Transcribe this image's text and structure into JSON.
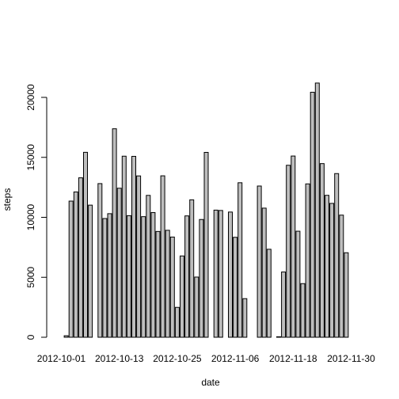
{
  "chart_data": {
    "type": "bar",
    "xlabel": "date",
    "ylabel": "steps",
    "ylim": [
      0,
      24500
    ],
    "y_ticks": [
      0,
      5000,
      10000,
      15000,
      20000
    ],
    "x_tick_labels": [
      "2012-10-01",
      "2012-10-13",
      "2012-10-25",
      "2012-11-06",
      "2012-11-18",
      "2012-11-30"
    ],
    "x_tick_indices": [
      0,
      12,
      24,
      36,
      48,
      60
    ],
    "bar_color": "#bebebe",
    "categories": [
      "2012-10-01",
      "2012-10-02",
      "2012-10-03",
      "2012-10-04",
      "2012-10-05",
      "2012-10-06",
      "2012-10-07",
      "2012-10-08",
      "2012-10-09",
      "2012-10-10",
      "2012-10-11",
      "2012-10-12",
      "2012-10-13",
      "2012-10-14",
      "2012-10-15",
      "2012-10-16",
      "2012-10-17",
      "2012-10-18",
      "2012-10-19",
      "2012-10-20",
      "2012-10-21",
      "2012-10-22",
      "2012-10-23",
      "2012-10-24",
      "2012-10-25",
      "2012-10-26",
      "2012-10-27",
      "2012-10-28",
      "2012-10-29",
      "2012-10-30",
      "2012-10-31",
      "2012-11-01",
      "2012-11-02",
      "2012-11-03",
      "2012-11-04",
      "2012-11-05",
      "2012-11-06",
      "2012-11-07",
      "2012-11-08",
      "2012-11-09",
      "2012-11-10",
      "2012-11-11",
      "2012-11-12",
      "2012-11-13",
      "2012-11-14",
      "2012-11-15",
      "2012-11-16",
      "2012-11-17",
      "2012-11-18",
      "2012-11-19",
      "2012-11-20",
      "2012-11-21",
      "2012-11-22",
      "2012-11-23",
      "2012-11-24",
      "2012-11-25",
      "2012-11-26",
      "2012-11-27",
      "2012-11-28",
      "2012-11-29",
      "2012-11-30"
    ],
    "values": [
      0,
      126,
      11352,
      12116,
      13294,
      15420,
      11015,
      0,
      12811,
      9900,
      10304,
      17382,
      12426,
      15098,
      10139,
      15084,
      13452,
      10056,
      11829,
      10395,
      8821,
      13460,
      8918,
      8355,
      2492,
      6778,
      10119,
      11458,
      5018,
      9819,
      15414,
      0,
      10600,
      10571,
      0,
      10439,
      8334,
      12883,
      3219,
      0,
      0,
      12608,
      10765,
      7336,
      0,
      41,
      5441,
      14339,
      15110,
      8841,
      4472,
      12787,
      20427,
      21194,
      14478,
      11834,
      11162,
      13646,
      10183,
      7047,
      0
    ]
  }
}
